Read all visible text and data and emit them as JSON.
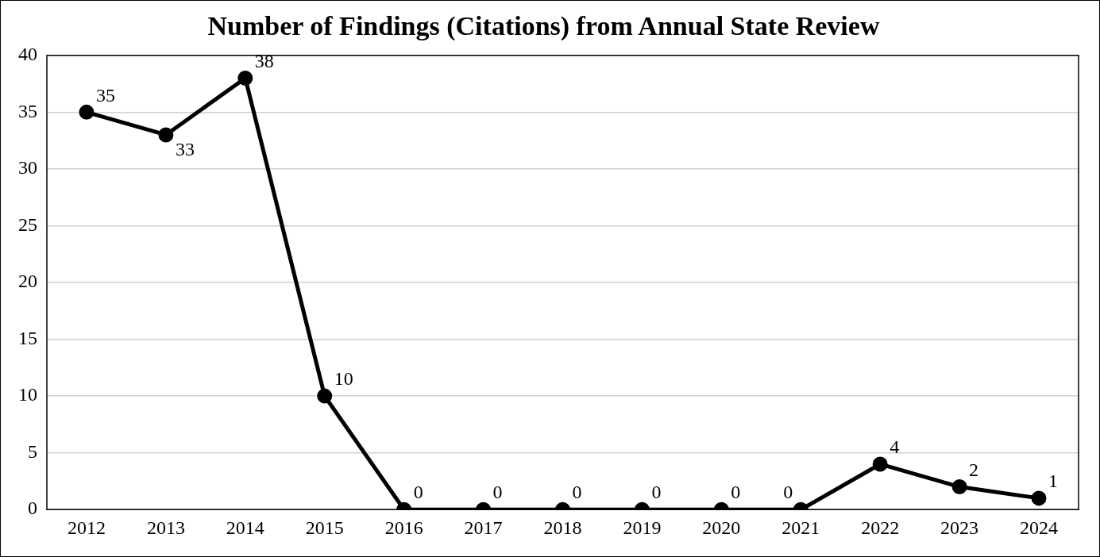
{
  "chart_data": {
    "type": "line",
    "title": "Number of Findings (Citations) from Annual State Review",
    "categories": [
      "2012",
      "2013",
      "2014",
      "2015",
      "2016",
      "2017",
      "2018",
      "2019",
      "2020",
      "2021",
      "2022",
      "2023",
      "2024"
    ],
    "series": [
      {
        "color": "#000000",
        "values": [
          35,
          33,
          38,
          10,
          0,
          0,
          0,
          0,
          0,
          0,
          4,
          2,
          1
        ]
      }
    ],
    "ylim": [
      0,
      40
    ],
    "yticks": [
      0,
      5,
      10,
      15,
      20,
      25,
      30,
      35,
      40
    ],
    "grid": "y",
    "legend": false,
    "marker": "circle",
    "line_style": "solid",
    "data_labels": true
  }
}
